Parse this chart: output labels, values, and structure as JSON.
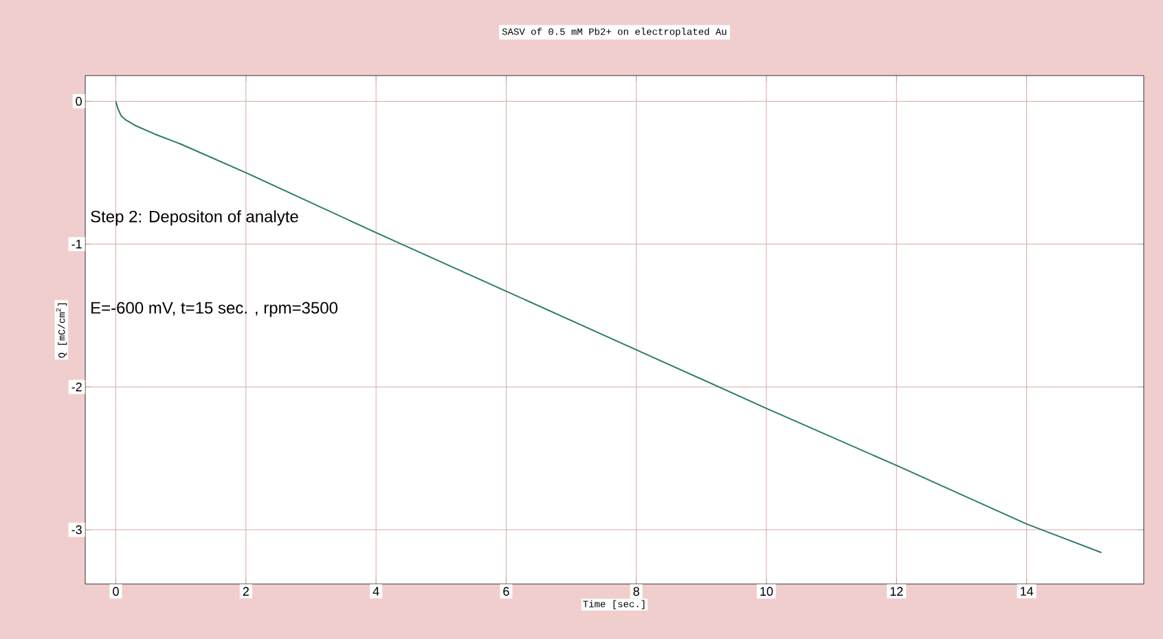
{
  "chart_data": {
    "type": "line",
    "title": "SASV of 0.5 mM Pb2+ on electroplated Au",
    "xlabel": "Time [sec.]",
    "ylabel": "Q [mC/cm$^{2}$]",
    "annotations": [
      "Step 2: Depositon of analyte",
      "E=-600 mV, t=15 sec. , rpm=3500"
    ],
    "x": [
      0,
      0.03,
      0.08,
      0.15,
      0.3,
      0.6,
      1,
      2,
      4,
      6,
      8,
      10,
      12,
      14,
      15.15
    ],
    "series": [
      {
        "color": "#2a7a6a",
        "values": [
          0,
          -0.05,
          -0.1,
          -0.13,
          -0.17,
          -0.23,
          -0.3,
          -0.5,
          -0.92,
          -1.33,
          -1.74,
          -2.15,
          -2.55,
          -2.96,
          -3.16
        ]
      }
    ],
    "xlim": [
      -0.47,
      15.8
    ],
    "ylim": [
      -3.38,
      0.18
    ],
    "xticks": [
      0,
      2,
      4,
      6,
      8,
      10,
      12,
      14
    ],
    "yticks": [
      -3,
      -2,
      -1,
      0
    ],
    "grid": true,
    "line_style": "solid",
    "marker": "none"
  }
}
